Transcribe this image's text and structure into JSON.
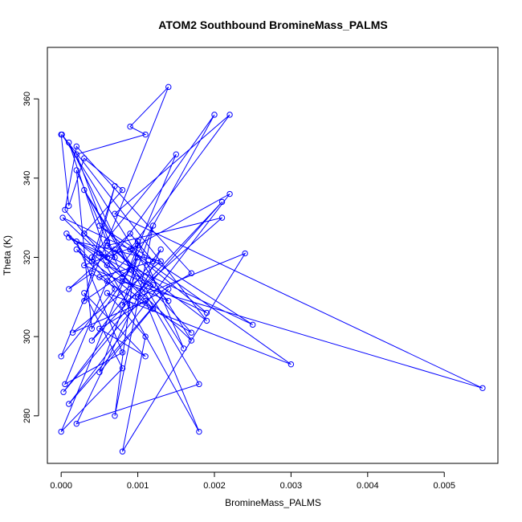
{
  "chart_data": {
    "type": "line",
    "title": "ATOM2 Southbound BromineMass_PALMS",
    "xlabel": "BromineMass_PALMS",
    "ylabel": "Theta (K)",
    "xlim": [
      -0.00018,
      0.0057
    ],
    "ylim": [
      268,
      373
    ],
    "x_ticks": [
      0,
      0.001,
      0.002,
      0.003,
      0.004,
      0.005
    ],
    "x_tick_labels": [
      "0.000",
      "0.001",
      "0.002",
      "0.003",
      "0.004",
      "0.005"
    ],
    "y_ticks": [
      280,
      300,
      320,
      340,
      360
    ],
    "y_tick_labels": [
      "280",
      "300",
      "320",
      "340",
      "360"
    ],
    "color": "#0000ff",
    "grid": false,
    "marker": "open-circle",
    "x": [
      0.0,
      0.0001,
      0.0003,
      0.0008,
      0.0003,
      0.0007,
      0.0002,
      0.0011,
      0.0009,
      0.0014,
      0.0006,
      0.0,
      0.0007,
      0.0002,
      0.0012,
      0.0003,
      5e-05,
      0.0002,
      0.0017,
      0.0005,
      0.0011,
      0.0003,
      0.0008,
      0.0,
      0.0015,
      0.0004,
      0.0009,
      3e-05,
      0.0012,
      0.0001,
      0.0025,
      0.0005,
      0.0019,
      0.0006,
      0.002,
      0.0008,
      0.0055,
      0.0007,
      0.0022,
      0.0009,
      0.003,
      0.0006,
      0.0011,
      0.0008,
      0.0024,
      0.001,
      0.0021,
      0.0004,
      0.0013,
      0.0002,
      0.0018,
      0.0003,
      0.0016,
      0.001,
      0.0007,
      0.0012,
      0.0005,
      0.0014,
      0.0001,
      0.0022,
      0.0009,
      2e-05,
      0.0017,
      1e-05,
      0.0019,
      0.0006,
      0.0021,
      0.0008,
      0.001,
      0.0004,
      0.0002,
      0.0008,
      7e-05,
      0.0004,
      0.0007,
      0.0003,
      0.0009,
      0.0001,
      0.0006,
      0.0005,
      0.0018,
      0.0011,
      0.00015,
      0.0013,
      0.0002,
      0.0008,
      5e-05,
      0.0006,
      0.001,
      0.0003,
      0.0014,
      0.0007,
      0.0017,
      0.0004,
      0.0001,
      0.0009,
      0.0012,
      0.0005
    ],
    "y": [
      351,
      333,
      345,
      337,
      326,
      320,
      346,
      351,
      353,
      363,
      324,
      295,
      312,
      322,
      307,
      326,
      332,
      348,
      316,
      302,
      295,
      311,
      292,
      276,
      346,
      320,
      308,
      286,
      313,
      325,
      303,
      328,
      306,
      318,
      356,
      314,
      287,
      331,
      356,
      322,
      293,
      311,
      300,
      271,
      321,
      310,
      334,
      299,
      322,
      278,
      288,
      337,
      297,
      324,
      280,
      328,
      291,
      312,
      283,
      336,
      322,
      330,
      299,
      351,
      304,
      323,
      330,
      308,
      320,
      302,
      342,
      315,
      326,
      319,
      338,
      309,
      317,
      349,
      320,
      321,
      276,
      309,
      301,
      319,
      324,
      296,
      288,
      314,
      323,
      318,
      309,
      322,
      301,
      316,
      312,
      326,
      319,
      315
    ]
  }
}
